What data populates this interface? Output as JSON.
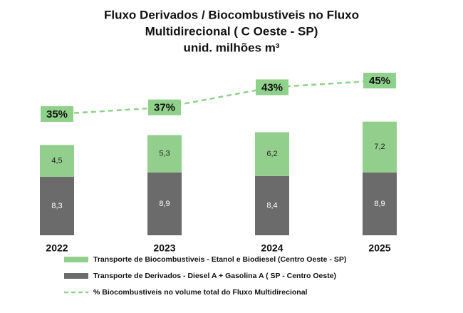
{
  "chart_data": {
    "type": "stacked-bar-line",
    "title": [
      "Fluxo Derivados / Biocombustiveis no Fluxo",
      "Multidirecional ( C Oeste - SP)",
      "unid. milhões m³"
    ],
    "categories": [
      "2022",
      "2023",
      "2024",
      "2025"
    ],
    "series": [
      {
        "name": "Transporte de Derivados - Diesel A + Gasolina A ( SP - Centro Oeste)",
        "color": "#6b6b6b",
        "values": [
          8.3,
          8.9,
          8.4,
          8.9
        ],
        "value_labels": [
          "8,3",
          "8,9",
          "8,4",
          "8,9"
        ],
        "label_color": "#ffffff"
      },
      {
        "name": "Transporte de Biocombustiveis - Etanol e Biodiesel (Centro Oeste - SP)",
        "color": "#93cf8c",
        "values": [
          4.5,
          5.3,
          6.2,
          7.2
        ],
        "value_labels": [
          "4,5",
          "5,3",
          "6,2",
          "7,2"
        ],
        "label_color": "#222222"
      }
    ],
    "line": {
      "name": "% Biocombustiveis no volume total do Fluxo Multidirecional",
      "color": "#8fd18b",
      "values": [
        35,
        37,
        43,
        45
      ],
      "value_labels": [
        "35%",
        "37%",
        "43%",
        "45%"
      ],
      "dashed": true
    },
    "legend_order": [
      1,
      0
    ]
  }
}
